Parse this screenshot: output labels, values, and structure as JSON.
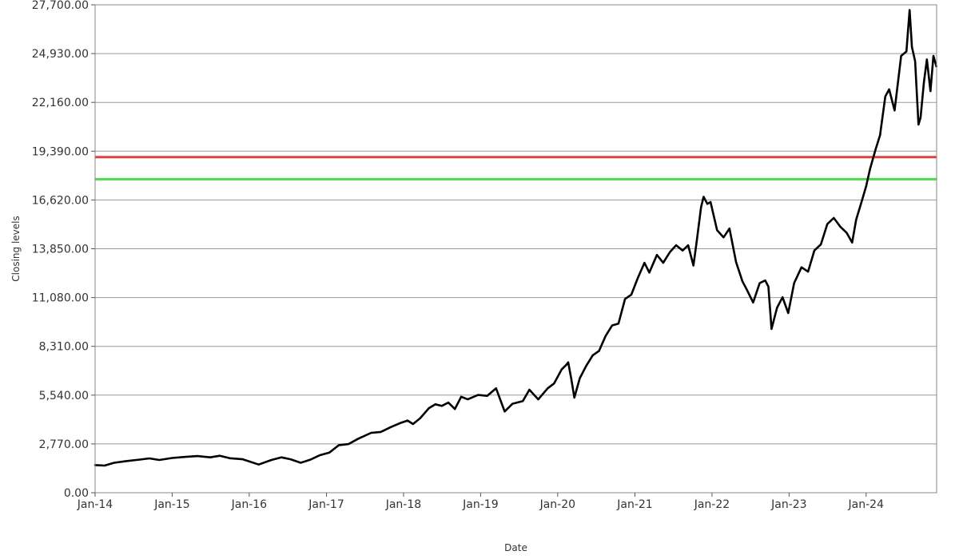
{
  "chart_data": {
    "type": "line",
    "title": "",
    "xlabel": "Date",
    "ylabel": "Closing levels",
    "ylim": [
      0,
      27700
    ],
    "xlim": [
      "2014-01-01",
      "2024-11-30"
    ],
    "y_ticks": [
      "0.00",
      "2,770.00",
      "5,540.00",
      "8,310.00",
      "11,080.00",
      "13,850.00",
      "16,620.00",
      "19,390.00",
      "22,160.00",
      "24,930.00",
      "27,700.00"
    ],
    "x_ticks": [
      {
        "label": "Jan-14",
        "date": "2014-01-01"
      },
      {
        "label": "Jan-15",
        "date": "2015-01-01"
      },
      {
        "label": "Jan-16",
        "date": "2016-01-01"
      },
      {
        "label": "Jan-17",
        "date": "2017-01-01"
      },
      {
        "label": "Jan-18",
        "date": "2018-01-01"
      },
      {
        "label": "Jan-19",
        "date": "2019-01-01"
      },
      {
        "label": "Jan-20",
        "date": "2020-01-01"
      },
      {
        "label": "Jan-21",
        "date": "2021-01-01"
      },
      {
        "label": "Jan-22",
        "date": "2022-01-01"
      },
      {
        "label": "Jan-23",
        "date": "2023-01-01"
      },
      {
        "label": "Jan-24",
        "date": "2024-01-01"
      }
    ],
    "grid": "horizontal",
    "reference_lines": [
      {
        "value": 19050,
        "color": "#e04040"
      },
      {
        "value": 17800,
        "color": "#4cd94c"
      }
    ],
    "series": [
      {
        "color": "#000000",
        "x": [
          "2014-01-01",
          "2014-02-15",
          "2014-04-01",
          "2014-06-01",
          "2014-08-01",
          "2014-09-15",
          "2014-11-01",
          "2015-01-01",
          "2015-03-01",
          "2015-05-01",
          "2015-07-01",
          "2015-08-15",
          "2015-10-01",
          "2015-12-01",
          "2016-02-15",
          "2016-04-15",
          "2016-06-01",
          "2016-07-15",
          "2016-09-01",
          "2016-10-15",
          "2016-12-01",
          "2017-01-15",
          "2017-03-01",
          "2017-04-15",
          "2017-06-01",
          "2017-08-01",
          "2017-09-15",
          "2017-11-01",
          "2017-12-15",
          "2018-01-20",
          "2018-02-15",
          "2018-03-20",
          "2018-05-01",
          "2018-06-01",
          "2018-07-01",
          "2018-08-01",
          "2018-09-01",
          "2018-10-01",
          "2018-11-01",
          "2018-12-20",
          "2019-02-01",
          "2019-03-15",
          "2019-04-25",
          "2019-06-01",
          "2019-07-20",
          "2019-08-20",
          "2019-10-01",
          "2019-11-15",
          "2019-12-15",
          "2020-01-20",
          "2020-02-10",
          "2020-02-20",
          "2020-03-05",
          "2020-03-20",
          "2020-04-15",
          "2020-05-15",
          "2020-06-15",
          "2020-07-15",
          "2020-08-15",
          "2020-09-15",
          "2020-10-15",
          "2020-11-15",
          "2020-12-15",
          "2021-01-15",
          "2021-02-15",
          "2021-03-10",
          "2021-04-15",
          "2021-05-15",
          "2021-06-15",
          "2021-07-15",
          "2021-08-15",
          "2021-09-10",
          "2021-10-05",
          "2021-10-20",
          "2021-11-10",
          "2021-11-22",
          "2021-12-10",
          "2021-12-25",
          "2022-01-25",
          "2022-02-25",
          "2022-03-25",
          "2022-04-25",
          "2022-05-25",
          "2022-06-16",
          "2022-07-15",
          "2022-08-15",
          "2022-09-10",
          "2022-09-25",
          "2022-10-10",
          "2022-11-05",
          "2022-12-01",
          "2022-12-28",
          "2023-01-25",
          "2023-03-01",
          "2023-04-01",
          "2023-05-01",
          "2023-06-01",
          "2023-07-01",
          "2023-08-01",
          "2023-09-01",
          "2023-10-01",
          "2023-10-27",
          "2023-11-15",
          "2023-12-10",
          "2024-01-01",
          "2024-01-20",
          "2024-02-15",
          "2024-03-07",
          "2024-04-01",
          "2024-04-19",
          "2024-05-15",
          "2024-06-15",
          "2024-07-10",
          "2024-07-25",
          "2024-08-05",
          "2024-08-20",
          "2024-09-05",
          "2024-09-15",
          "2024-10-01",
          "2024-10-15",
          "2024-11-01",
          "2024-11-15",
          "2024-11-29"
        ],
        "values": [
          1570,
          1540,
          1700,
          1800,
          1880,
          1950,
          1860,
          1970,
          2030,
          2080,
          2010,
          2100,
          1960,
          1900,
          1600,
          1860,
          2010,
          1900,
          1700,
          1870,
          2130,
          2280,
          2700,
          2760,
          3070,
          3400,
          3450,
          3720,
          3950,
          4100,
          3900,
          4220,
          4800,
          5020,
          4930,
          5120,
          4750,
          5450,
          5300,
          5550,
          5500,
          5930,
          4610,
          5050,
          5200,
          5850,
          5300,
          5930,
          6200,
          7000,
          7250,
          7400,
          6500,
          5400,
          6500,
          7200,
          7800,
          8050,
          8900,
          9500,
          9600,
          11000,
          11250,
          12200,
          13050,
          12500,
          13500,
          13050,
          13650,
          14050,
          13750,
          14050,
          12900,
          14200,
          16200,
          16800,
          16400,
          16500,
          14900,
          14500,
          15000,
          13100,
          12000,
          11500,
          10800,
          11900,
          12050,
          11700,
          9300,
          10500,
          11100,
          10200,
          11900,
          12800,
          12550,
          13750,
          14100,
          15250,
          15600,
          15100,
          14750,
          14200,
          15500,
          16500,
          17400,
          18400,
          19500,
          20300,
          22500,
          22900,
          21700,
          24800,
          25050,
          27400,
          25300,
          24500,
          20900,
          21300,
          23300,
          24600,
          22800,
          24800,
          24200
        ]
      }
    ]
  }
}
